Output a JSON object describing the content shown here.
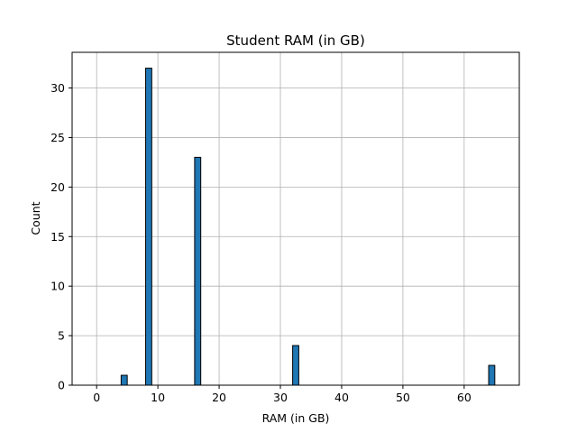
{
  "chart_data": {
    "type": "bar",
    "title": "Student RAM (in GB)",
    "xlabel": "RAM (in GB)",
    "ylabel": "Count",
    "xlim": [
      -4,
      69
    ],
    "ylim": [
      0,
      33.6
    ],
    "grid": true,
    "bar_color": "#1f77b4",
    "bar_edge_color": "#000000",
    "bin_width": 1,
    "x_ticks": [
      0,
      10,
      20,
      30,
      40,
      50,
      60
    ],
    "y_ticks": [
      0,
      5,
      10,
      15,
      20,
      25,
      30
    ],
    "bars": [
      {
        "x": 4,
        "count": 1
      },
      {
        "x": 8,
        "count": 32
      },
      {
        "x": 16,
        "count": 23
      },
      {
        "x": 32,
        "count": 4
      },
      {
        "x": 64,
        "count": 2
      }
    ]
  }
}
